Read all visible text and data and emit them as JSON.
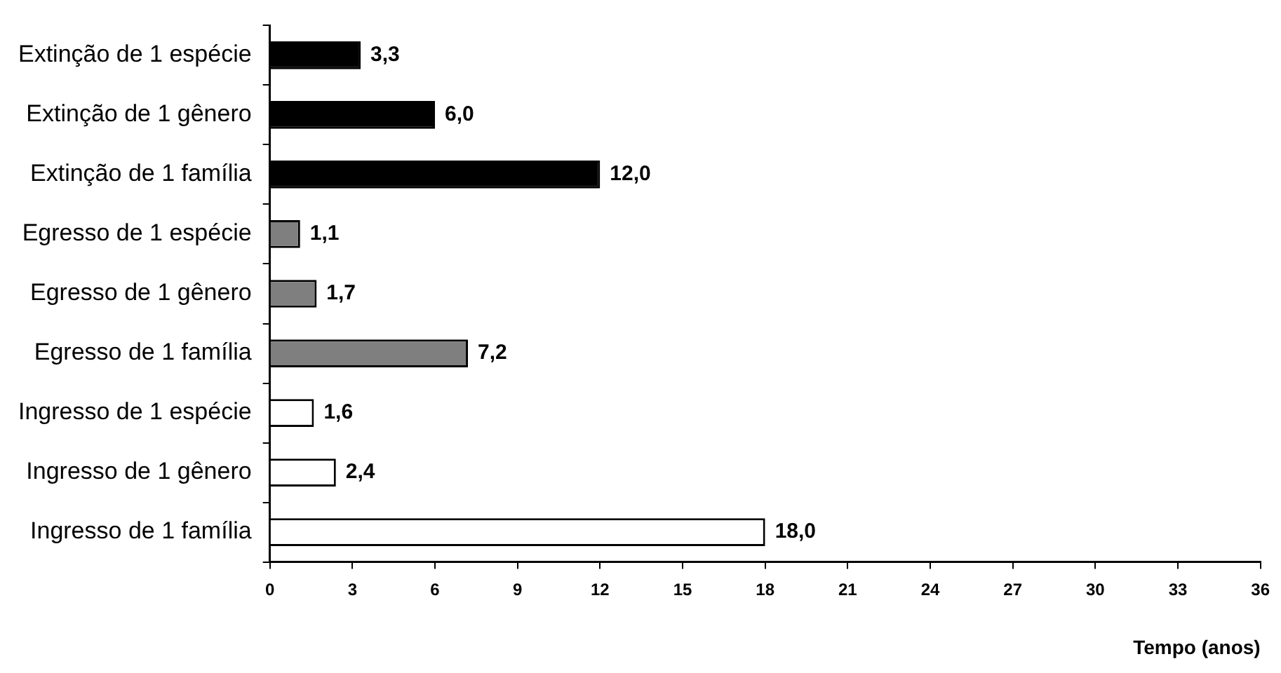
{
  "chart_data": {
    "type": "bar",
    "orientation": "horizontal",
    "xlabel": "Tempo (anos)",
    "categories": [
      "Extinção de 1 espécie",
      "Extinção de 1 gênero",
      "Extinção de 1 família",
      "Egresso de 1 espécie",
      "Egresso de 1 gênero",
      "Egresso de 1 família",
      "Ingresso de 1 espécie",
      "Ingresso de 1 gênero",
      "Ingresso de 1 família"
    ],
    "values": [
      3.3,
      6.0,
      12.0,
      1.1,
      1.7,
      7.2,
      1.6,
      2.4,
      18.0
    ],
    "value_labels": [
      "3,3",
      "6,0",
      "12,0",
      "1,1",
      "1,7",
      "7,2",
      "1,6",
      "2,4",
      "18,0"
    ],
    "colors": [
      "#000000",
      "#000000",
      "#000000",
      "#7f7f7f",
      "#7f7f7f",
      "#7f7f7f",
      "#ffffff",
      "#ffffff",
      "#ffffff"
    ],
    "xlim": [
      0,
      36
    ],
    "xticks": [
      0,
      3,
      6,
      9,
      12,
      15,
      18,
      21,
      24,
      27,
      30,
      33,
      36
    ],
    "grid": false,
    "legend": false
  }
}
